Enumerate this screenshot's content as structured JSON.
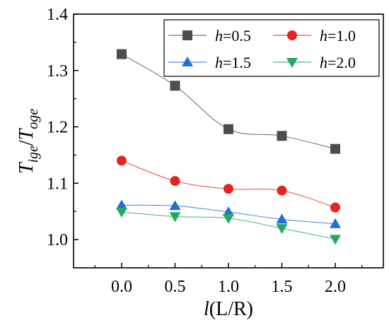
{
  "chart_data": {
    "type": "line",
    "x": [
      0.0,
      0.5,
      1.0,
      1.5,
      2.0
    ],
    "x_ticks": [
      "0.0",
      "0.5",
      "1.0",
      "1.5",
      "2.0"
    ],
    "y_ticks": [
      "1.0",
      "1.1",
      "1.2",
      "1.3",
      "1.4"
    ],
    "xlim": [
      -0.45,
      2.45
    ],
    "ylim": [
      0.95,
      1.4
    ],
    "xlabel": "l(L/R)",
    "ylabel": "Tige/Toge",
    "grid": false,
    "legend_placement": "top-right",
    "series": [
      {
        "name": "h=0.5",
        "marker": "square",
        "color": "#4d4d4d",
        "values": [
          1.329,
          1.273,
          1.196,
          1.184,
          1.161
        ]
      },
      {
        "name": "h=1.0",
        "marker": "circle",
        "color": "#e8231e",
        "values": [
          1.14,
          1.104,
          1.09,
          1.087,
          1.057
        ]
      },
      {
        "name": "h=1.5",
        "marker": "triangle-up",
        "color": "#1f6fd8",
        "values": [
          1.061,
          1.06,
          1.049,
          1.036,
          1.028
        ]
      },
      {
        "name": "h=2.0",
        "marker": "triangle-down",
        "color": "#26a861",
        "values": [
          1.049,
          1.041,
          1.038,
          1.02,
          1.001
        ]
      }
    ]
  },
  "legend": [
    {
      "var": "h",
      "value": "=0.5"
    },
    {
      "var": "h",
      "value": "=1.0"
    },
    {
      "var": "h",
      "value": "=1.5"
    },
    {
      "var": "h",
      "value": "=2.0"
    }
  ],
  "axis_titles": {
    "x": {
      "main": "l",
      "rest": "(L/R)"
    },
    "y": {
      "t1": "T",
      "s1": "ige",
      "slash": "/",
      "t2": "T",
      "s2": "oge"
    }
  }
}
